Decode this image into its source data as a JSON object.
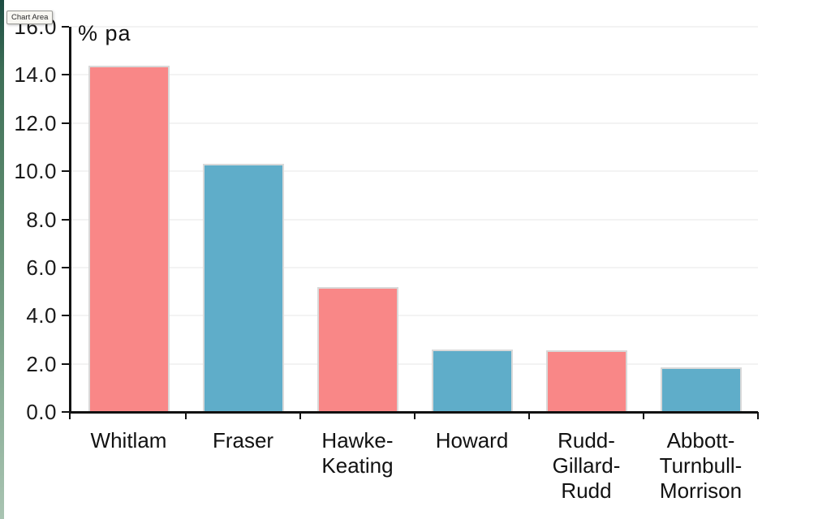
{
  "app": {
    "tooltip": "Chart Area"
  },
  "chart_data": {
    "type": "bar",
    "title": "",
    "unit_label": "% pa",
    "categories": [
      "Whitlam",
      "Fraser",
      "Hawke-\nKeating",
      "Howard",
      "Rudd-\nGillard-\nRudd",
      "Abbott-\nTurnbull-\nMorrison"
    ],
    "values": [
      14.4,
      10.3,
      5.2,
      2.6,
      2.55,
      1.85
    ],
    "series": [
      {
        "name": "",
        "values": [
          14.4,
          10.3,
          5.2,
          2.6,
          2.55,
          1.85
        ]
      }
    ],
    "bar_colors": [
      "#f98787",
      "#5fadc9",
      "#f98787",
      "#5fadc9",
      "#f98787",
      "#5fadc9"
    ],
    "ylabel": "% pa",
    "xlabel": "",
    "ylim": [
      0,
      16
    ],
    "ytick_step": 2,
    "ytick_labels": [
      "0.0",
      "2.0",
      "4.0",
      "6.0",
      "8.0",
      "10.0",
      "12.0",
      "14.0",
      "16.0"
    ],
    "grid": true,
    "legend_position": "none"
  },
  "colors": {
    "bar_pink": "#f98787",
    "bar_blue": "#5fadc9",
    "bar_border": "#d9d9d9",
    "gridline": "#f3f3f3",
    "axis": "#121212",
    "edge_strip_top": "#1c4c42",
    "edge_strip_bottom": "#a9c4b2",
    "tooltip_bg": "#f8f7f2"
  }
}
